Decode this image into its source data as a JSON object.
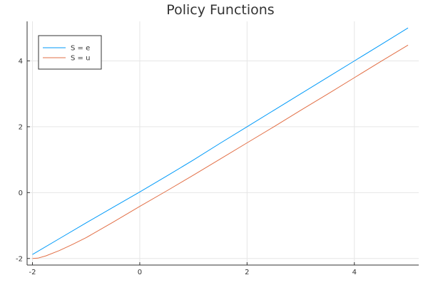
{
  "chart_data": {
    "type": "line",
    "title": "Policy Functions",
    "xlabel": "",
    "ylabel": "",
    "xlim": [
      -2.1,
      5.2
    ],
    "ylim": [
      -2.2,
      5.2
    ],
    "x_ticks": [
      -2,
      0,
      2,
      4
    ],
    "y_ticks": [
      -2,
      0,
      2,
      4
    ],
    "x_tick_labels": [
      "-2",
      "0",
      "2",
      "4"
    ],
    "y_tick_labels": [
      "-2",
      "0",
      "2",
      "4"
    ],
    "grid": true,
    "legend_position": "top-left",
    "series": [
      {
        "name": "S = e",
        "color": "#009af9",
        "x": [
          -2.0,
          -1.5,
          -1.0,
          -0.5,
          0.0,
          0.5,
          1.0,
          1.5,
          2.0,
          2.5,
          3.0,
          3.5,
          4.0,
          4.5,
          5.0
        ],
        "y": [
          -1.88,
          -1.4,
          -0.92,
          -0.45,
          0.02,
          0.5,
          0.99,
          1.5,
          2.0,
          2.5,
          3.0,
          3.5,
          4.0,
          4.5,
          5.0
        ]
      },
      {
        "name": "S = u",
        "color": "#e26f46",
        "x": [
          -2.0,
          -1.9,
          -1.75,
          -1.5,
          -1.25,
          -1.0,
          -0.5,
          0.0,
          0.5,
          1.0,
          1.5,
          2.0,
          2.5,
          3.0,
          3.5,
          4.0,
          4.5,
          5.0
        ],
        "y": [
          -2.0,
          -1.99,
          -1.92,
          -1.76,
          -1.57,
          -1.37,
          -0.9,
          -0.42,
          0.05,
          0.53,
          1.02,
          1.51,
          2.0,
          2.5,
          2.99,
          3.49,
          3.99,
          4.48
        ]
      }
    ]
  }
}
